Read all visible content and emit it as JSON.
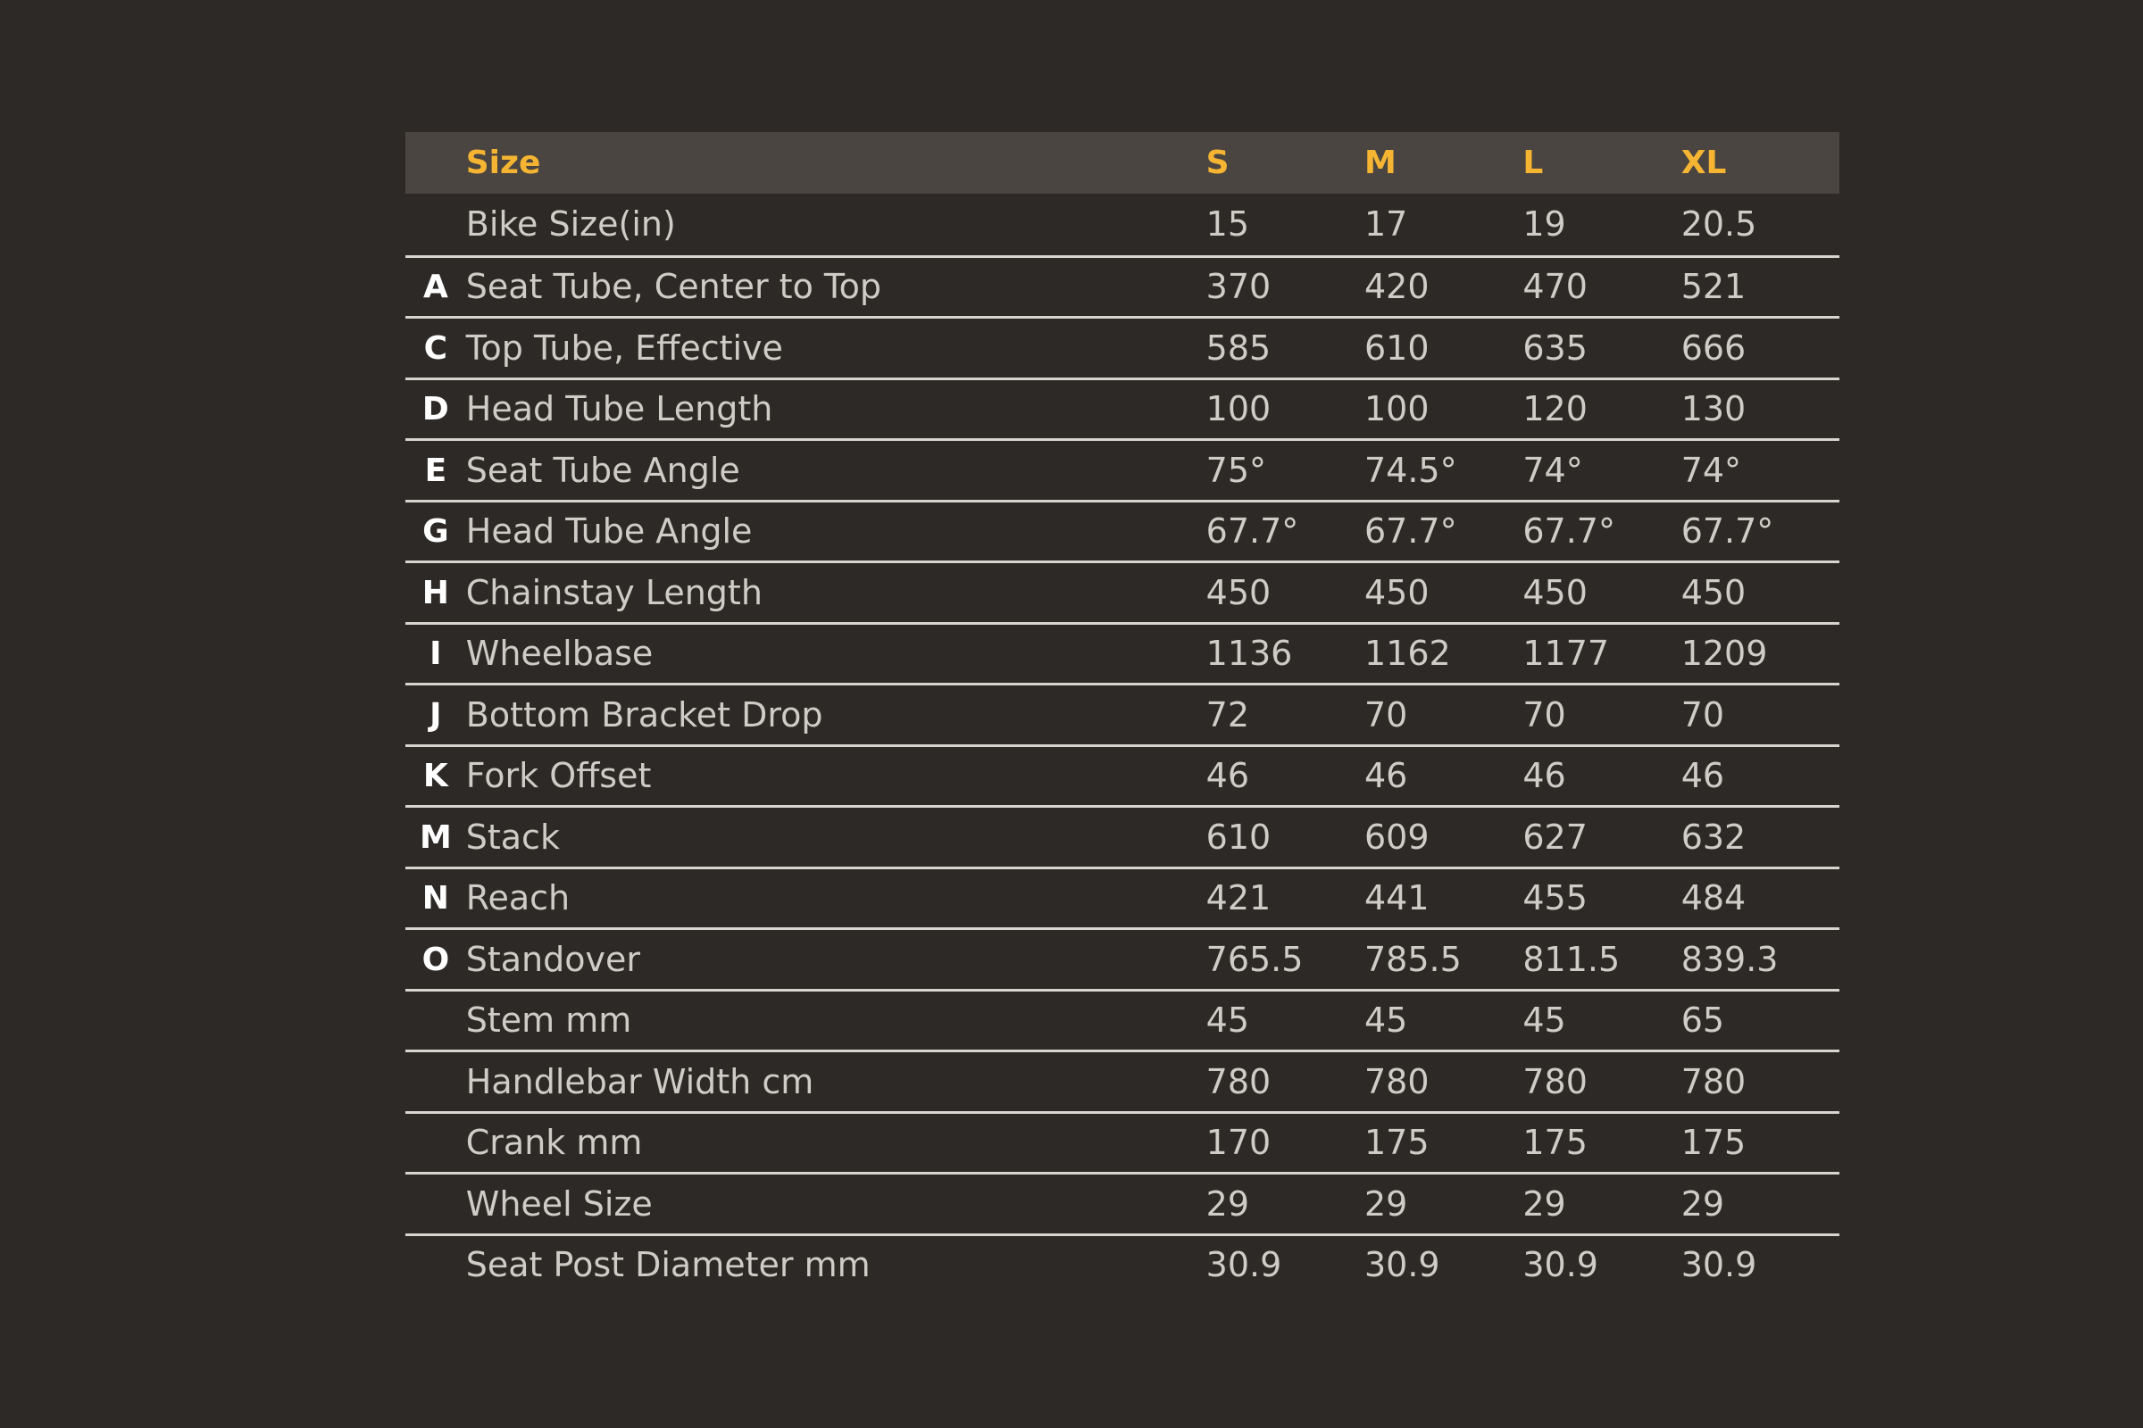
{
  "colors": {
    "background": "#2d2926",
    "header_background": "#4a4541",
    "header_text": "#f5b532",
    "row_text": "#cfcbc6",
    "letter_text": "#ffffff",
    "row_divider": "#d8d4cf"
  },
  "header": {
    "label": "Size",
    "sizes": [
      "S",
      "M",
      "L",
      "XL"
    ]
  },
  "rows": [
    {
      "letter": "",
      "label": "Bike Size(in)",
      "values": [
        "15",
        "17",
        "19",
        "20.5"
      ]
    },
    {
      "letter": "A",
      "label": "Seat Tube, Center to Top",
      "values": [
        "370",
        "420",
        "470",
        "521"
      ]
    },
    {
      "letter": "C",
      "label": "Top Tube, Effective",
      "values": [
        "585",
        "610",
        "635",
        "666"
      ]
    },
    {
      "letter": "D",
      "label": "Head Tube Length",
      "values": [
        "100",
        "100",
        "120",
        "130"
      ]
    },
    {
      "letter": "E",
      "label": "Seat Tube Angle",
      "values": [
        "75°",
        "74.5°",
        "74°",
        "74°"
      ]
    },
    {
      "letter": "G",
      "label": "Head Tube Angle",
      "values": [
        "67.7°",
        "67.7°",
        "67.7°",
        "67.7°"
      ]
    },
    {
      "letter": "H",
      "label": "Chainstay Length",
      "values": [
        "450",
        "450",
        "450",
        "450"
      ]
    },
    {
      "letter": "I",
      "label": "Wheelbase",
      "values": [
        "1136",
        "1162",
        "1177",
        "1209"
      ]
    },
    {
      "letter": "J",
      "label": "Bottom Bracket Drop",
      "values": [
        "72",
        "70",
        "70",
        "70"
      ]
    },
    {
      "letter": "K",
      "label": "Fork Offset",
      "values": [
        "46",
        "46",
        "46",
        "46"
      ]
    },
    {
      "letter": "M",
      "label": "Stack",
      "values": [
        "610",
        "609",
        "627",
        "632"
      ]
    },
    {
      "letter": "N",
      "label": "Reach",
      "values": [
        "421",
        "441",
        "455",
        "484"
      ]
    },
    {
      "letter": "O",
      "label": "Standover",
      "values": [
        "765.5",
        "785.5",
        "811.5",
        "839.3"
      ]
    },
    {
      "letter": "",
      "label": "Stem mm",
      "values": [
        "45",
        "45",
        "45",
        "65"
      ]
    },
    {
      "letter": "",
      "label": "Handlebar Width cm",
      "values": [
        "780",
        "780",
        "780",
        "780"
      ]
    },
    {
      "letter": "",
      "label": "Crank mm",
      "values": [
        "170",
        "175",
        "175",
        "175"
      ]
    },
    {
      "letter": "",
      "label": "Wheel Size",
      "values": [
        "29",
        "29",
        "29",
        "29"
      ]
    },
    {
      "letter": "",
      "label": "Seat Post Diameter mm",
      "values": [
        "30.9",
        "30.9",
        "30.9",
        "30.9"
      ]
    }
  ]
}
